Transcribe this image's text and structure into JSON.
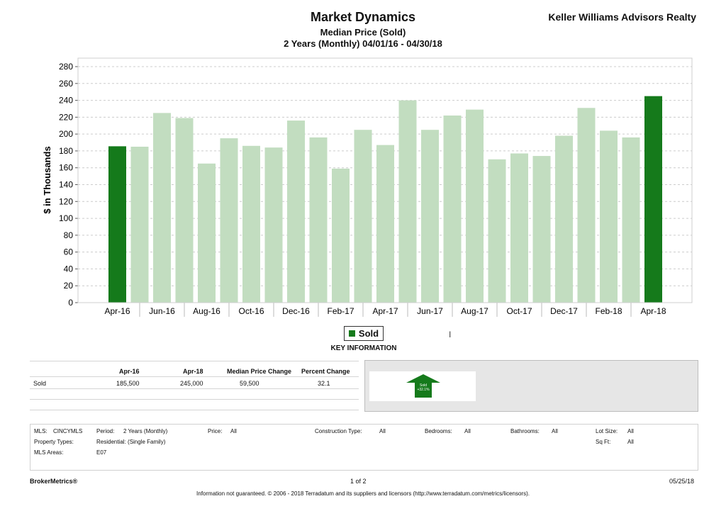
{
  "header": {
    "brand": "Keller Williams Advisors Realty"
  },
  "chart_data": {
    "type": "bar",
    "title": "Market Dynamics",
    "subtitle": "Median Price (Sold)",
    "subtitle2": "2 Years (Monthly) 04/01/16 - 04/30/18",
    "ylabel": "$ in Thousands",
    "xlabel": "",
    "ylim": [
      0,
      280
    ],
    "yticks": [
      0,
      20,
      40,
      60,
      80,
      100,
      120,
      140,
      160,
      180,
      200,
      220,
      240,
      260,
      280
    ],
    "grid": true,
    "legend_position": "bottom-center",
    "categories": [
      "Apr-16",
      "May-16",
      "Jun-16",
      "Jul-16",
      "Aug-16",
      "Sep-16",
      "Oct-16",
      "Nov-16",
      "Dec-16",
      "Jan-17",
      "Feb-17",
      "Mar-17",
      "Apr-17",
      "May-17",
      "Jun-17",
      "Jul-17",
      "Aug-17",
      "Sep-17",
      "Oct-17",
      "Nov-17",
      "Dec-17",
      "Jan-18",
      "Feb-18",
      "Mar-18",
      "Apr-18"
    ],
    "tick_labels": [
      "Apr-16",
      "Jun-16",
      "Aug-16",
      "Oct-16",
      "Dec-16",
      "Feb-17",
      "Apr-17",
      "Jun-17",
      "Aug-17",
      "Oct-17",
      "Dec-17",
      "Feb-18",
      "Apr-18"
    ],
    "series": [
      {
        "name": "Sold",
        "values": [
          185.5,
          185,
          225,
          219,
          165,
          195,
          186,
          184,
          216,
          196,
          159,
          205,
          187,
          240,
          205,
          222,
          229,
          170,
          177,
          174,
          198,
          231,
          204,
          196,
          245
        ]
      }
    ],
    "highlight_indices": [
      0,
      24
    ],
    "colors": {
      "highlight": "#157a1b",
      "normal": "#c2ddc0",
      "grid": "#cccccc"
    }
  },
  "legend": {
    "label": "Sold"
  },
  "key_info": {
    "title": "KEY INFORMATION",
    "headers": [
      "Apr-16",
      "Apr-18",
      "Median Price Change",
      "Percent Change"
    ],
    "rows": [
      {
        "label": "Sold",
        "values": [
          "185,500",
          "245,000",
          "59,500",
          "32.1"
        ]
      }
    ],
    "badge_line1": "Sold",
    "badge_line2": "+32.1%"
  },
  "criteria": {
    "mls_label": "MLS:",
    "mls": "CINCYMLS",
    "period_label": "Period:",
    "period": "2 Years (Monthly)",
    "price_label": "Price:",
    "price": "All",
    "construction_label": "Construction Type:",
    "construction": "All",
    "bedrooms_label": "Bedrooms:",
    "bedrooms": "All",
    "bathrooms_label": "Bathrooms:",
    "bathrooms": "All",
    "lot_label": "Lot Size:",
    "lot": "All",
    "prop_types_label": "Property Types:",
    "prop_types": "Residential: (Single Family)",
    "sqft_label": "Sq Ft:",
    "sqft": "All",
    "areas_label": "MLS Areas:",
    "areas": "E07"
  },
  "footer": {
    "brand": "BrokerMetrics®",
    "page": "1 of 2",
    "date": "05/25/18",
    "disclaimer": "Information not guaranteed.  © 2006 - 2018 Terradatum and its suppliers and licensors (http://www.terradatum.com/metrics/licensors)."
  }
}
